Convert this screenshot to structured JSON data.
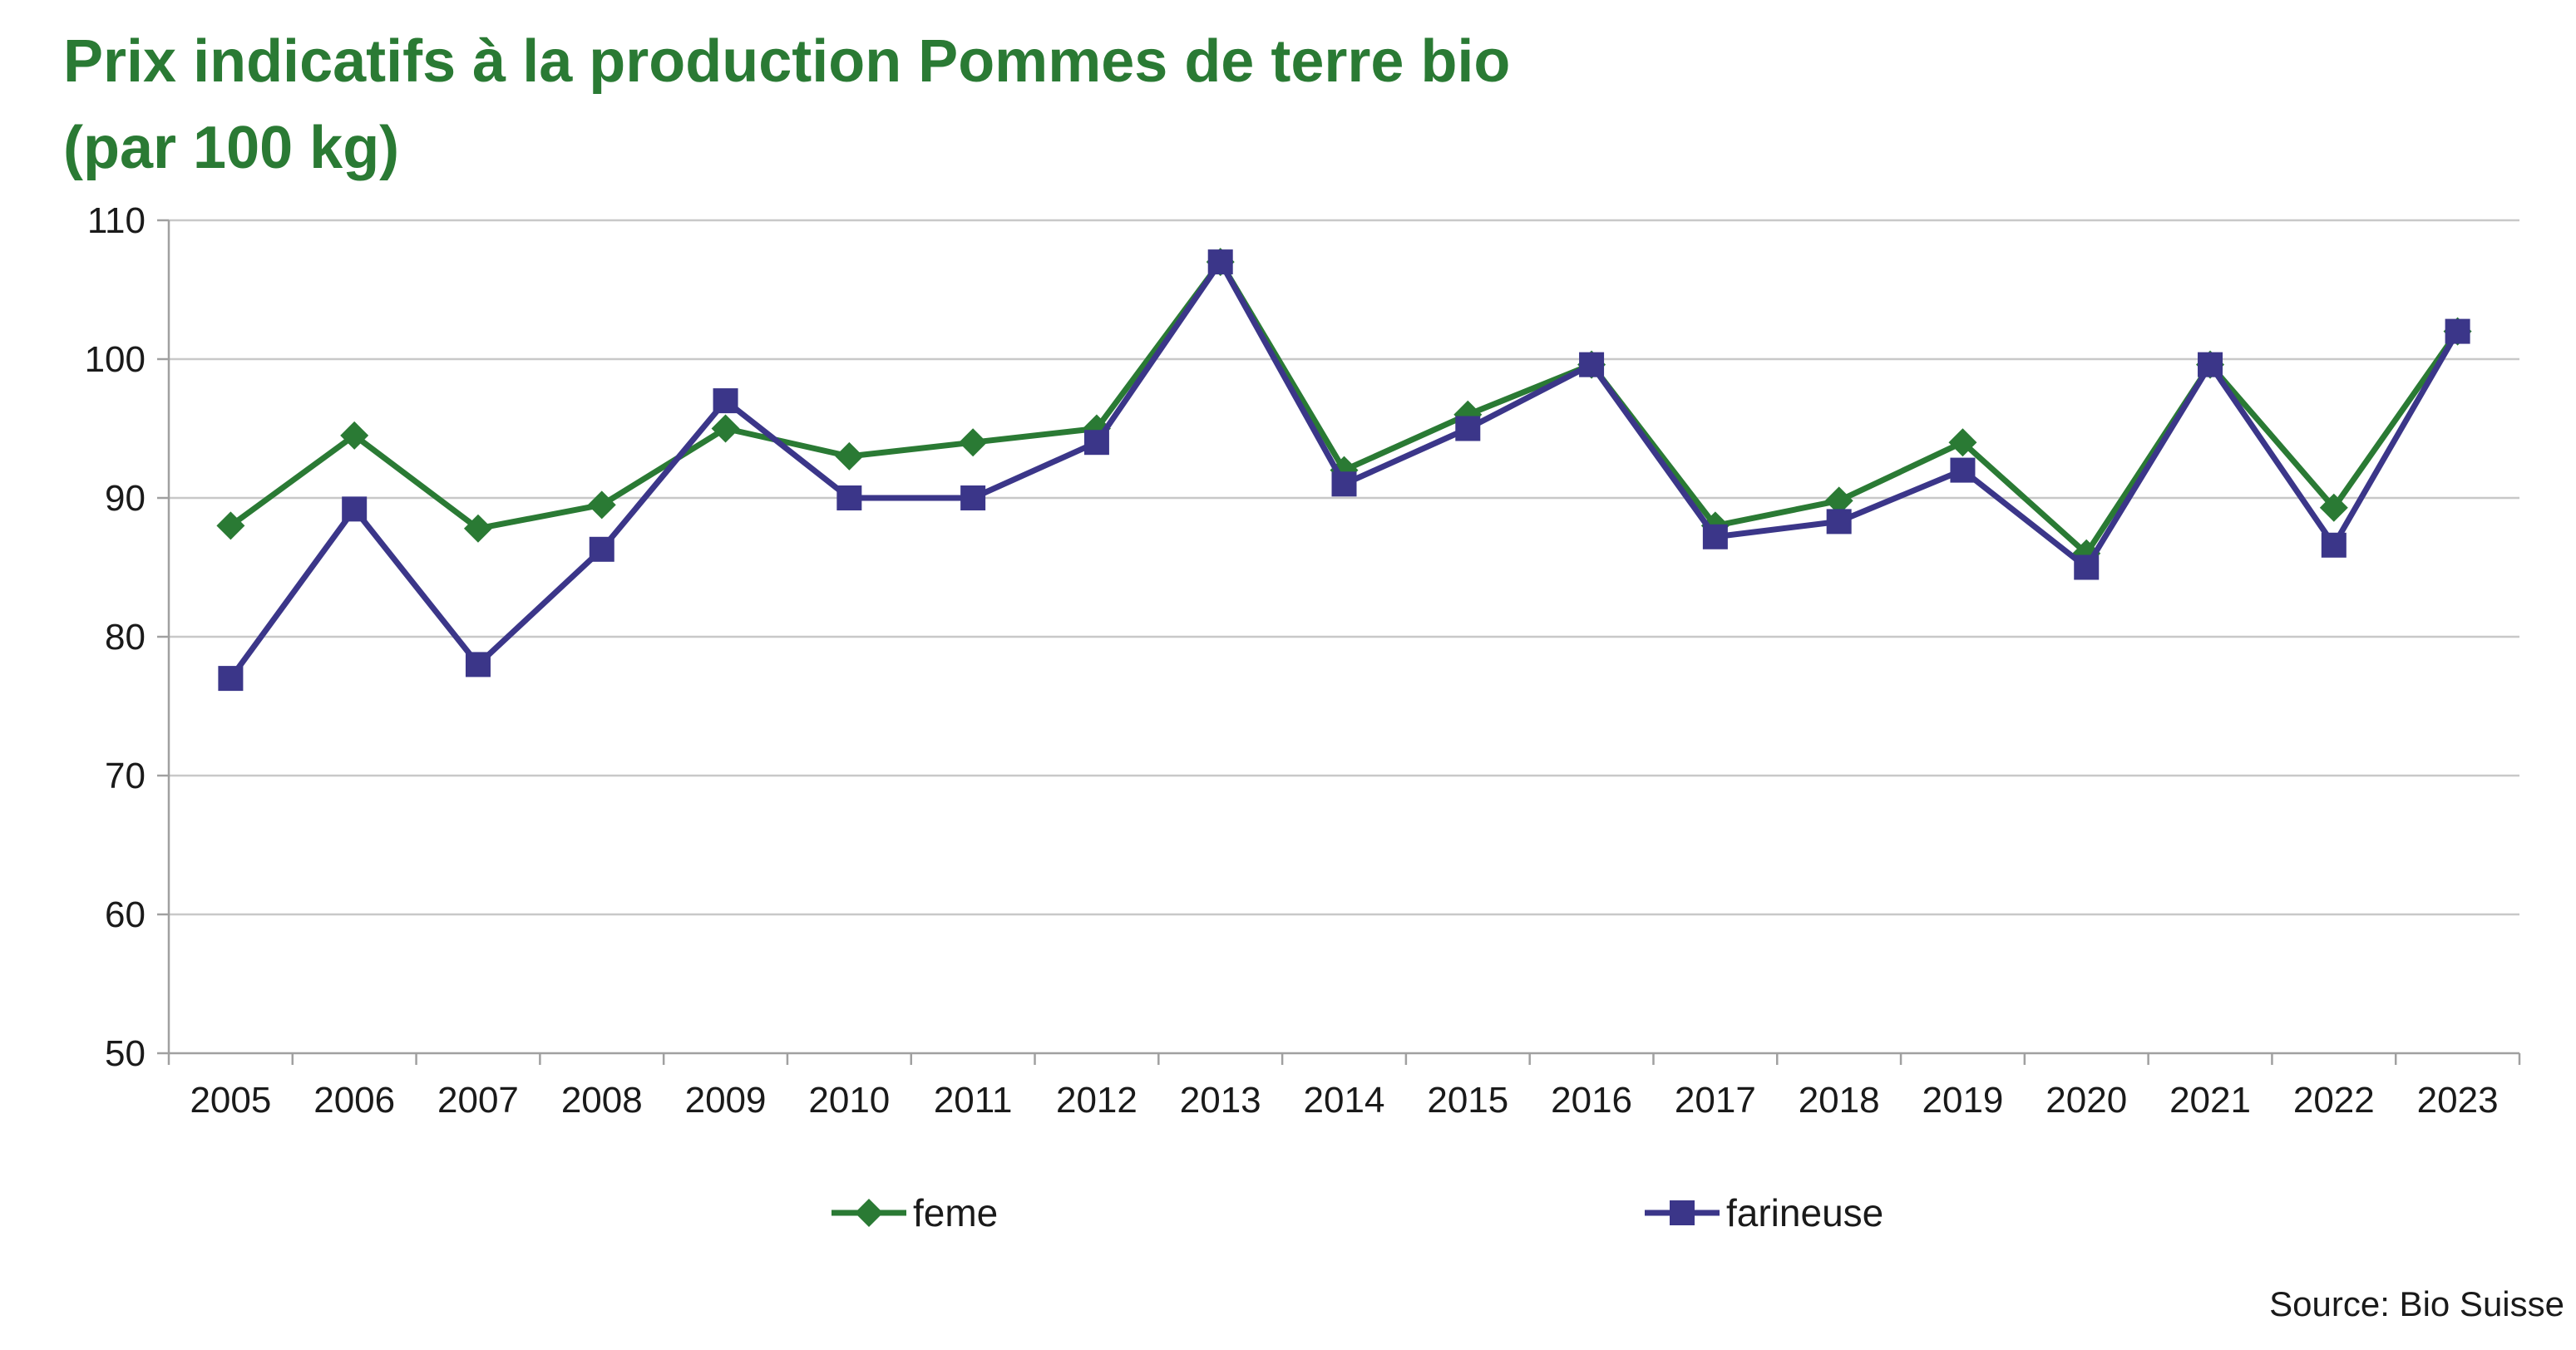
{
  "header": {
    "title_line1": "Prix indicatifs à la production Pommes de terre bio",
    "title_line2": "(par 100 kg)"
  },
  "footer": {
    "source": "Source: Bio Suisse"
  },
  "colors": {
    "title": "#2a7a34",
    "feme": "#2a7a34",
    "farineuse": "#3b3689",
    "grid": "#c8c8c8",
    "axis": "#a0a0a0"
  },
  "chart_data": {
    "type": "line",
    "title": "Prix indicatifs à la production Pommes de terre bio (par 100 kg)",
    "xlabel": "",
    "ylabel": "",
    "categories": [
      "2005",
      "2006",
      "2007",
      "2008",
      "2009",
      "2010",
      "2011",
      "2012",
      "2013",
      "2014",
      "2015",
      "2016",
      "2017",
      "2018",
      "2019",
      "2020",
      "2021",
      "2022",
      "2023"
    ],
    "ylim": [
      50,
      110
    ],
    "yticks": [
      50,
      60,
      70,
      80,
      90,
      100,
      110
    ],
    "grid": true,
    "legend_position": "bottom",
    "series": [
      {
        "name": "feme",
        "marker": "diamond",
        "color": "#2a7a34",
        "values": [
          88,
          94.5,
          87.8,
          89.5,
          95,
          93,
          94,
          95,
          107,
          92,
          96,
          99.6,
          88,
          89.8,
          94,
          86,
          99.6,
          89.3,
          102
        ]
      },
      {
        "name": "farineuse",
        "marker": "square",
        "color": "#3b3689",
        "values": [
          77,
          89.2,
          78,
          86.3,
          97,
          90,
          90,
          94,
          107,
          91,
          95,
          99.6,
          87.2,
          88.3,
          92,
          85,
          99.6,
          86.6,
          102
        ]
      }
    ]
  }
}
